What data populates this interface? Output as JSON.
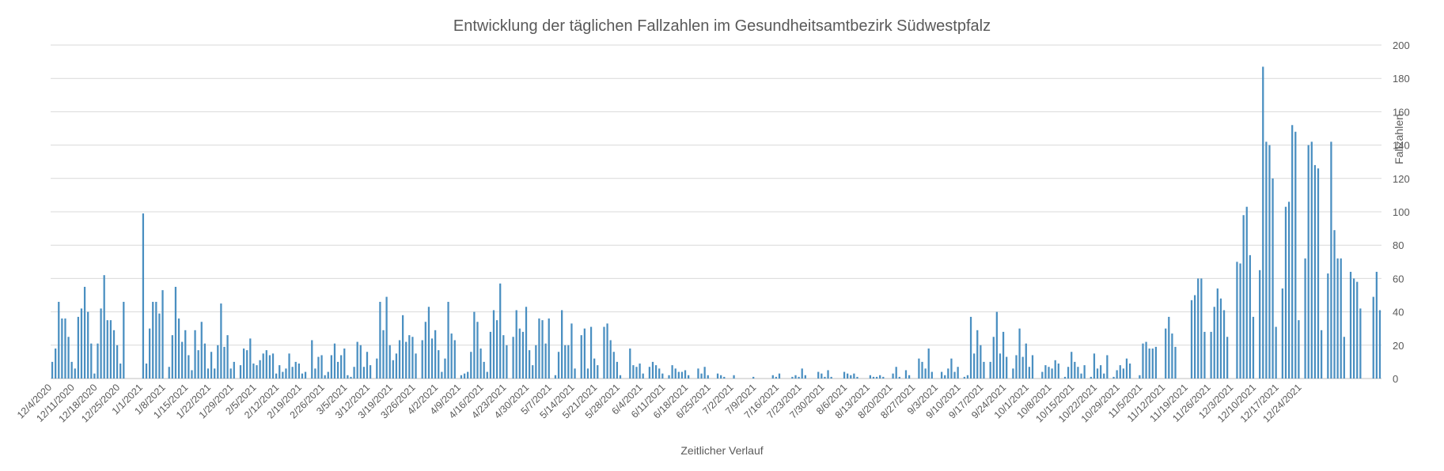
{
  "chart_data": {
    "type": "bar",
    "title": "Entwicklung der täglichen Fallzahlen im Gesundheitsamtbezirk Südwestpfalz",
    "xlabel": "Zeitlicher Verlauf",
    "ylabel": "Fallzahlen",
    "ylim": [
      0,
      200
    ],
    "yticks": [
      0,
      20,
      40,
      60,
      80,
      100,
      120,
      140,
      160,
      180,
      200
    ],
    "grid": true,
    "legend": "none",
    "x_tick_labels": [
      "12/4/2020",
      "12/11/2020",
      "12/18/2020",
      "12/25/2020",
      "1/1/2021",
      "1/8/2021",
      "1/15/2021",
      "1/22/2021",
      "1/29/2021",
      "2/5/2021",
      "2/12/2021",
      "2/19/2021",
      "2/26/2021",
      "3/5/2021",
      "3/12/2021",
      "3/19/2021",
      "3/26/2021",
      "4/2/2021",
      "4/9/2021",
      "4/16/2021",
      "4/23/2021",
      "4/30/2021",
      "5/7/2021",
      "5/14/2021",
      "5/21/2021",
      "5/28/2021",
      "6/4/2021",
      "6/11/2021",
      "6/18/2021",
      "6/25/2021",
      "7/2/2021",
      "7/9/2021",
      "7/16/2021",
      "7/23/2021",
      "7/30/2021",
      "8/6/2021",
      "8/13/2021",
      "8/20/2021",
      "8/27/2021",
      "9/3/2021",
      "9/10/2021",
      "9/17/2021",
      "9/24/2021",
      "10/1/2021",
      "10/8/2021",
      "10/15/2021",
      "10/22/2021",
      "10/29/2021",
      "11/5/2021",
      "11/12/2021",
      "11/19/2021",
      "11/26/2021",
      "12/3/2021",
      "12/10/2021",
      "12/17/2021",
      "12/24/2021"
    ],
    "start_date": "12/4/2020",
    "values": [
      10,
      18,
      46,
      36,
      36,
      25,
      10,
      6,
      37,
      42,
      55,
      40,
      21,
      3,
      21,
      42,
      62,
      35,
      35,
      29,
      20,
      9,
      46,
      0,
      0,
      0,
      0,
      0,
      99,
      9,
      30,
      46,
      46,
      39,
      53,
      0,
      7,
      26,
      55,
      36,
      22,
      29,
      14,
      5,
      29,
      17,
      34,
      21,
      6,
      16,
      6,
      20,
      45,
      19,
      26,
      6,
      10,
      0,
      8,
      18,
      17,
      24,
      9,
      8,
      11,
      15,
      17,
      14,
      15,
      3,
      8,
      4,
      6,
      15,
      7,
      10,
      9,
      3,
      4,
      0,
      23,
      6,
      13,
      14,
      2,
      4,
      14,
      21,
      10,
      14,
      18,
      2,
      1,
      7,
      22,
      20,
      7,
      16,
      8,
      0,
      12,
      46,
      29,
      49,
      20,
      11,
      15,
      23,
      38,
      22,
      26,
      25,
      15,
      0,
      23,
      34,
      43,
      24,
      29,
      17,
      4,
      12,
      46,
      27,
      23,
      0,
      2,
      3,
      4,
      16,
      40,
      34,
      18,
      10,
      4,
      28,
      41,
      35,
      57,
      26,
      20,
      0,
      25,
      41,
      30,
      28,
      43,
      17,
      8,
      20,
      36,
      35,
      21,
      36,
      0,
      2,
      16,
      41,
      20,
      20,
      33,
      6,
      0,
      26,
      30,
      6,
      31,
      12,
      8,
      0,
      31,
      33,
      23,
      16,
      10,
      2,
      0,
      0,
      18,
      8,
      7,
      9,
      3,
      0,
      7,
      10,
      8,
      6,
      3,
      0,
      2,
      8,
      6,
      4,
      4,
      5,
      2,
      0,
      0,
      6,
      3,
      7,
      2,
      0,
      0,
      3,
      2,
      1,
      0,
      0,
      2,
      0,
      0,
      0,
      0,
      0,
      1,
      0,
      0,
      0,
      0,
      0,
      2,
      1,
      3,
      0,
      0,
      0,
      1,
      2,
      1,
      6,
      2,
      0,
      0,
      0,
      4,
      3,
      1,
      5,
      1,
      0,
      0,
      0,
      4,
      3,
      2,
      3,
      1,
      0,
      0,
      0,
      2,
      1,
      1,
      2,
      1,
      0,
      0,
      3,
      7,
      1,
      0,
      5,
      2,
      0,
      0,
      12,
      10,
      6,
      18,
      4,
      0,
      0,
      4,
      2,
      6,
      12,
      4,
      7,
      0,
      1,
      2,
      37,
      15,
      29,
      20,
      10,
      0,
      10,
      25,
      40,
      15,
      28,
      13,
      0,
      6,
      14,
      30,
      13,
      21,
      7,
      14,
      0,
      0,
      4,
      8,
      7,
      6,
      11,
      9,
      0,
      1,
      7,
      16,
      10,
      7,
      3,
      8,
      0,
      1,
      15,
      6,
      8,
      3,
      14,
      0,
      1,
      5,
      8,
      6,
      12,
      9,
      0,
      0,
      2,
      21,
      22,
      18,
      18,
      19,
      0,
      0,
      30,
      37,
      27,
      19,
      0,
      0,
      0,
      0,
      47,
      50,
      60,
      60,
      28,
      0,
      28,
      43,
      54,
      48,
      41,
      25,
      0,
      0,
      70,
      69,
      98,
      103,
      74,
      37,
      0,
      65,
      187,
      142,
      140,
      120,
      31,
      0,
      54,
      103,
      106,
      152,
      148,
      35,
      0,
      72,
      140,
      142,
      128,
      126,
      29,
      0,
      63,
      142,
      89,
      72,
      72,
      25,
      0,
      64,
      60,
      58,
      42,
      0,
      0,
      0,
      49,
      64,
      41
    ]
  }
}
